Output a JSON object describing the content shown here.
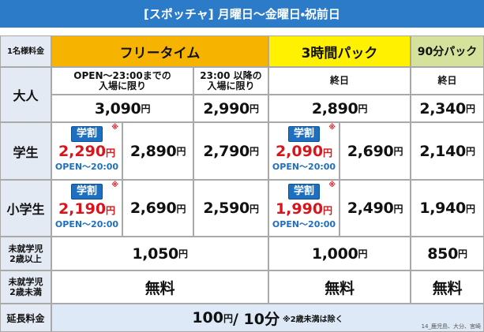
{
  "header": {
    "title": "[スポッチャ] 月曜日〜金曜日・祝前日"
  },
  "table": {
    "corner": "1名様料金",
    "plans": [
      "フリータイム",
      "3時間パック",
      "90分パック"
    ],
    "conditions": [
      "OPEN～23:00までの\n入場に限り",
      "23:00 以降の\n入場に限り",
      "終日",
      "終日"
    ],
    "unit": "円",
    "discount": {
      "badge": "学割",
      "mark": "※",
      "hours": "OPEN～20:00"
    },
    "adult": {
      "label": "大人",
      "prices": [
        "3,090",
        "2,990",
        "2,890",
        "2,340"
      ]
    },
    "student": {
      "label": "学生",
      "prices": [
        "2,290",
        "2,890",
        "2,790",
        "2,090",
        "2,690",
        "2,140"
      ]
    },
    "elementary": {
      "label": "小学生",
      "prices": [
        "2,190",
        "2,690",
        "2,590",
        "1,990",
        "2,490",
        "1,940"
      ]
    },
    "preschool_over2": {
      "label": "未就学児\n2歳以上",
      "prices": [
        "1,050",
        "1,000",
        "850"
      ]
    },
    "preschool_under2": {
      "label": "未就学児\n2歳未満",
      "prices": [
        "無料",
        "無料",
        "無料"
      ]
    },
    "extension": {
      "label": "延長料金",
      "amount": "100",
      "per": " / 10分",
      "note": "※2歳未満は除く"
    }
  },
  "footnote": "14_鹿児島、大分、宮崎"
}
